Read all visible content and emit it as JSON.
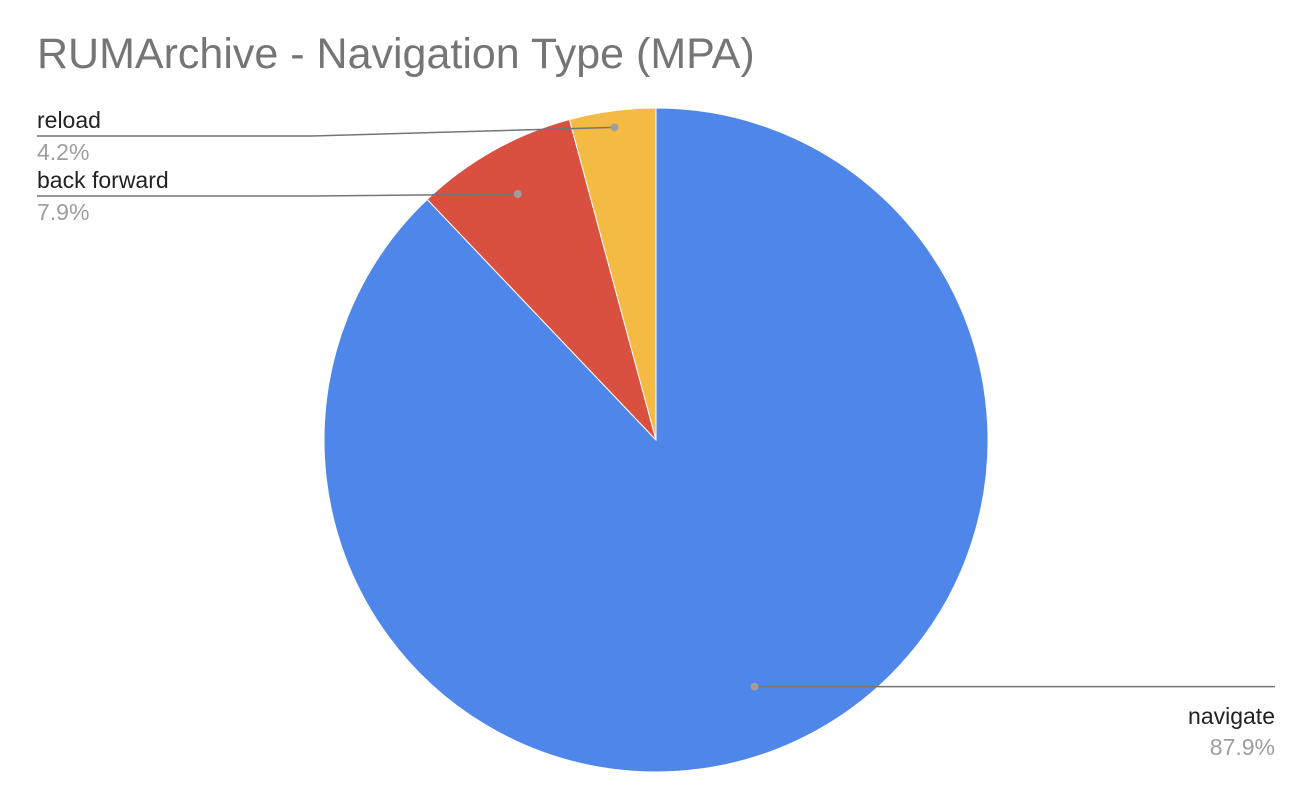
{
  "chart_data": {
    "type": "pie",
    "title": "RUMArchive - Navigation Type (MPA)",
    "slices": [
      {
        "label": "navigate",
        "value": 87.9,
        "pct_label": "87.9%",
        "color": "#4f86ea"
      },
      {
        "label": "back forward",
        "value": 7.9,
        "pct_label": "7.9%",
        "color": "#d95040"
      },
      {
        "label": "reload",
        "value": 4.2,
        "pct_label": "4.2%",
        "color": "#f3bb43"
      }
    ],
    "leader_line_color": "#757575",
    "leader_dot_color": "#9e9e9e"
  }
}
